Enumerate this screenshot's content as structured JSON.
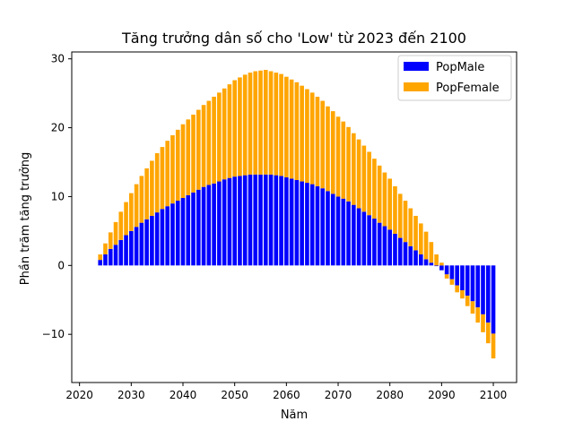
{
  "chart_data": {
    "type": "bar",
    "stacked": true,
    "title": "Tăng trưởng dân số cho 'Low' từ 2023 đến 2100",
    "xlabel": "Năm",
    "ylabel": "Phần trăm tăng trưởng",
    "xlim": [
      2018.5,
      2104.5
    ],
    "ylim": [
      -17,
      31
    ],
    "xticks": [
      2020,
      2030,
      2040,
      2050,
      2060,
      2070,
      2080,
      2090,
      2100
    ],
    "yticks": [
      -10,
      0,
      10,
      20,
      30
    ],
    "legend_position": "top-right",
    "grid": false,
    "x": [
      2024,
      2025,
      2026,
      2027,
      2028,
      2029,
      2030,
      2031,
      2032,
      2033,
      2034,
      2035,
      2036,
      2037,
      2038,
      2039,
      2040,
      2041,
      2042,
      2043,
      2044,
      2045,
      2046,
      2047,
      2048,
      2049,
      2050,
      2051,
      2052,
      2053,
      2054,
      2055,
      2056,
      2057,
      2058,
      2059,
      2060,
      2061,
      2062,
      2063,
      2064,
      2065,
      2066,
      2067,
      2068,
      2069,
      2070,
      2071,
      2072,
      2073,
      2074,
      2075,
      2076,
      2077,
      2078,
      2079,
      2080,
      2081,
      2082,
      2083,
      2084,
      2085,
      2086,
      2087,
      2088,
      2089,
      2090,
      2091,
      2092,
      2093,
      2094,
      2095,
      2096,
      2097,
      2098,
      2099,
      2100
    ],
    "series": [
      {
        "name": "PopMale",
        "color": "#0000ff",
        "values": [
          0.8,
          1.6,
          2.4,
          3.0,
          3.7,
          4.4,
          5.0,
          5.6,
          6.2,
          6.7,
          7.2,
          7.7,
          8.2,
          8.6,
          9.0,
          9.4,
          9.8,
          10.2,
          10.6,
          11.0,
          11.4,
          11.7,
          11.9,
          12.2,
          12.5,
          12.7,
          12.9,
          13.0,
          13.1,
          13.2,
          13.2,
          13.2,
          13.2,
          13.2,
          13.1,
          13.0,
          12.8,
          12.6,
          12.4,
          12.2,
          12.0,
          11.8,
          11.5,
          11.2,
          10.8,
          10.4,
          10.0,
          9.7,
          9.3,
          8.8,
          8.3,
          7.8,
          7.3,
          6.8,
          6.2,
          5.7,
          5.2,
          4.6,
          4.0,
          3.4,
          2.8,
          2.2,
          1.6,
          0.9,
          0.4,
          -0.1,
          -0.7,
          -1.3,
          -2.0,
          -2.9,
          -3.6,
          -4.4,
          -5.2,
          -6.1,
          -7.1,
          -8.3,
          -9.9
        ]
      },
      {
        "name": "PopFemale",
        "color": "#ffa500",
        "values": [
          0.8,
          1.6,
          2.4,
          3.3,
          4.1,
          4.8,
          5.5,
          6.2,
          6.8,
          7.4,
          8.0,
          8.6,
          9.0,
          9.5,
          9.9,
          10.3,
          10.7,
          11.0,
          11.3,
          11.6,
          11.9,
          12.2,
          12.6,
          12.9,
          13.2,
          13.6,
          14.0,
          14.3,
          14.6,
          14.8,
          15.0,
          15.1,
          15.2,
          15.0,
          14.9,
          14.8,
          14.6,
          14.4,
          14.2,
          13.9,
          13.6,
          13.3,
          13.0,
          12.7,
          12.3,
          12.0,
          11.6,
          11.2,
          10.8,
          10.4,
          10.0,
          9.6,
          9.2,
          8.7,
          8.3,
          7.8,
          7.4,
          6.9,
          6.4,
          6.0,
          5.5,
          5.0,
          4.5,
          4.0,
          3.0,
          1.6,
          0.4,
          -0.6,
          -0.8,
          -1.0,
          -1.2,
          -1.5,
          -1.8,
          -2.2,
          -2.6,
          -3.0,
          -3.6
        ]
      }
    ]
  }
}
